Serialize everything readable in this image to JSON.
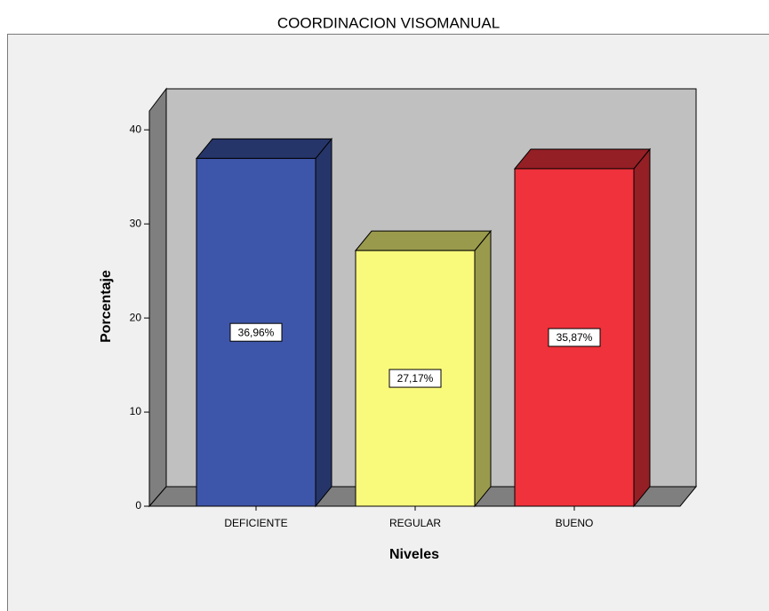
{
  "chart_data": {
    "type": "bar3d",
    "title": "COORDINACION VISOMANUAL",
    "categories": [
      "DEFICIENTE",
      "REGULAR",
      "BUENO"
    ],
    "values": [
      36.96,
      27.17,
      35.87
    ],
    "value_labels": [
      "36,96%",
      "27,17%",
      "35,87%"
    ],
    "colors": [
      "#3e56a9",
      "#f9f97c",
      "#ef323b"
    ],
    "x_label": "Niveles",
    "y_label": "Porcentaje",
    "ylim": [
      0,
      42
    ],
    "yticks": [
      0,
      10,
      20,
      30,
      40
    ],
    "grid": false
  }
}
